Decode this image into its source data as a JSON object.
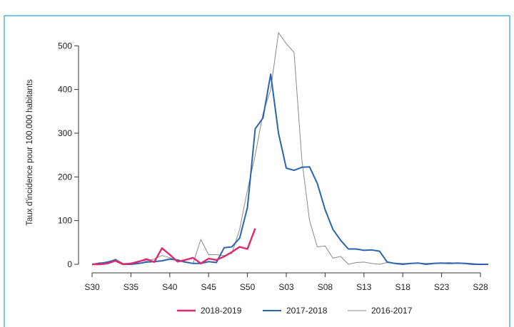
{
  "chart_data": {
    "type": "line",
    "title": "",
    "xlabel": "",
    "ylabel": "Taux d'incidence pour 100,000 habitants",
    "ylim": [
      0,
      530
    ],
    "yticks": [
      0,
      100,
      200,
      300,
      400,
      500
    ],
    "xticks": [
      {
        "i": 0,
        "label": "S30"
      },
      {
        "i": 5,
        "label": "S35"
      },
      {
        "i": 10,
        "label": "S40"
      },
      {
        "i": 15,
        "label": "S45"
      },
      {
        "i": 20,
        "label": "S50"
      },
      {
        "i": 25,
        "label": "S03"
      },
      {
        "i": 30,
        "label": "S08"
      },
      {
        "i": 35,
        "label": "S13"
      },
      {
        "i": 40,
        "label": "S18"
      },
      {
        "i": 45,
        "label": "S23"
      },
      {
        "i": 50,
        "label": "S28"
      }
    ],
    "grid": false,
    "legend_position": "bottom",
    "series": [
      {
        "name": "2018-2019",
        "color": "#e0286e",
        "values": [
          0,
          0,
          2,
          8,
          0,
          2,
          6,
          12,
          5,
          37,
          22,
          6,
          10,
          15,
          2,
          13,
          10,
          18,
          28,
          40,
          35,
          82
        ]
      },
      {
        "name": "2017-2018",
        "color": "#2a64ad",
        "values": [
          0,
          2,
          5,
          10,
          0,
          0,
          2,
          5,
          6,
          8,
          12,
          10,
          5,
          2,
          2,
          6,
          4,
          38,
          40,
          60,
          130,
          310,
          335,
          435,
          300,
          220,
          215,
          222,
          223,
          185,
          125,
          80,
          55,
          35,
          35,
          32,
          33,
          30,
          5,
          2,
          0,
          2,
          3,
          0,
          2,
          3,
          2,
          3,
          2,
          0,
          0,
          0
        ]
      },
      {
        "name": "2016-2017",
        "color": "#8a8a8a",
        "values": [
          0,
          4,
          3,
          12,
          2,
          2,
          8,
          8,
          12,
          20,
          15,
          8,
          4,
          2,
          57,
          22,
          22,
          20,
          25,
          80,
          170,
          250,
          345,
          400,
          530,
          505,
          485,
          240,
          100,
          40,
          42,
          14,
          18,
          0,
          4,
          5,
          2,
          0,
          4,
          3,
          2,
          2,
          3,
          2,
          3,
          3,
          4,
          2,
          3,
          2,
          0,
          0
        ]
      }
    ]
  }
}
